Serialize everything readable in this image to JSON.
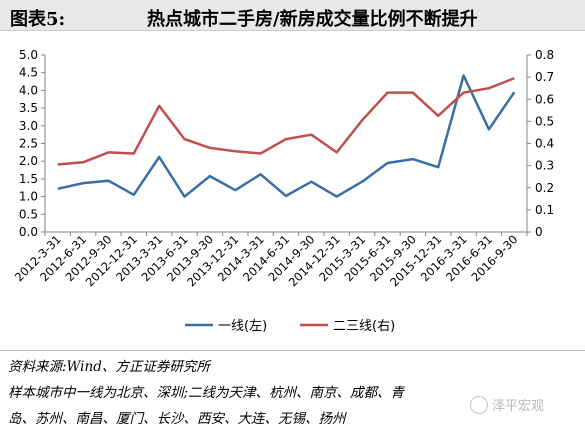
{
  "header": {
    "label": "图表5:",
    "title": "热点城市二手房/新房成交量比例不断提升"
  },
  "chart_data": {
    "type": "line",
    "title": "",
    "categories": [
      "2012-3-31",
      "2012-6-31",
      "2012-9-30",
      "2012-12-31",
      "2013-3-31",
      "2013-6-31",
      "2013-9-30",
      "2013-12-31",
      "2014-3-31",
      "2014-6-31",
      "2014-9-30",
      "2014-12-31",
      "2015-3-31",
      "2015-6-31",
      "2015-9-30",
      "2015-12-31",
      "2016-3-31",
      "2016-6-31",
      "2016-9-30"
    ],
    "left_axis": {
      "min": 0,
      "max": 5,
      "ticks": [
        "0.0",
        "0.5",
        "1.0",
        "1.5",
        "2.0",
        "2.5",
        "3.0",
        "3.5",
        "4.0",
        "4.5",
        "5.0"
      ]
    },
    "right_axis": {
      "min": 0,
      "max": 0.8,
      "ticks": [
        "0",
        "0.1",
        "0.2",
        "0.3",
        "0.4",
        "0.5",
        "0.6",
        "0.7",
        "0.8"
      ]
    },
    "series": [
      {
        "name": "一线(左)",
        "axis": "left",
        "color": "#3a6ea5",
        "values": [
          1.22,
          1.38,
          1.45,
          1.05,
          2.12,
          1.0,
          1.58,
          1.18,
          1.63,
          1.02,
          1.42,
          1.0,
          1.42,
          1.95,
          2.06,
          1.83,
          4.42,
          2.9,
          3.95
        ]
      },
      {
        "name": "二三线(右)",
        "axis": "right",
        "color": "#c0504d",
        "values": [
          0.305,
          0.315,
          0.36,
          0.355,
          0.57,
          0.42,
          0.38,
          0.365,
          0.355,
          0.42,
          0.44,
          0.36,
          0.505,
          0.63,
          0.63,
          0.525,
          0.63,
          0.65,
          0.695
        ]
      }
    ],
    "legend_position": "bottom",
    "grid": false
  },
  "notes": {
    "source": "资料来源:Wind、方正证券研究所",
    "sample_1": "样本城市中一线为北京、深圳;二线为天津、杭州、南京、成都、青",
    "sample_2": "岛、苏州、南昌、厦门、长沙、西安、大连、无锡、扬州"
  },
  "watermark": {
    "text": "泽平宏观",
    "icon": "wechat-icon"
  }
}
